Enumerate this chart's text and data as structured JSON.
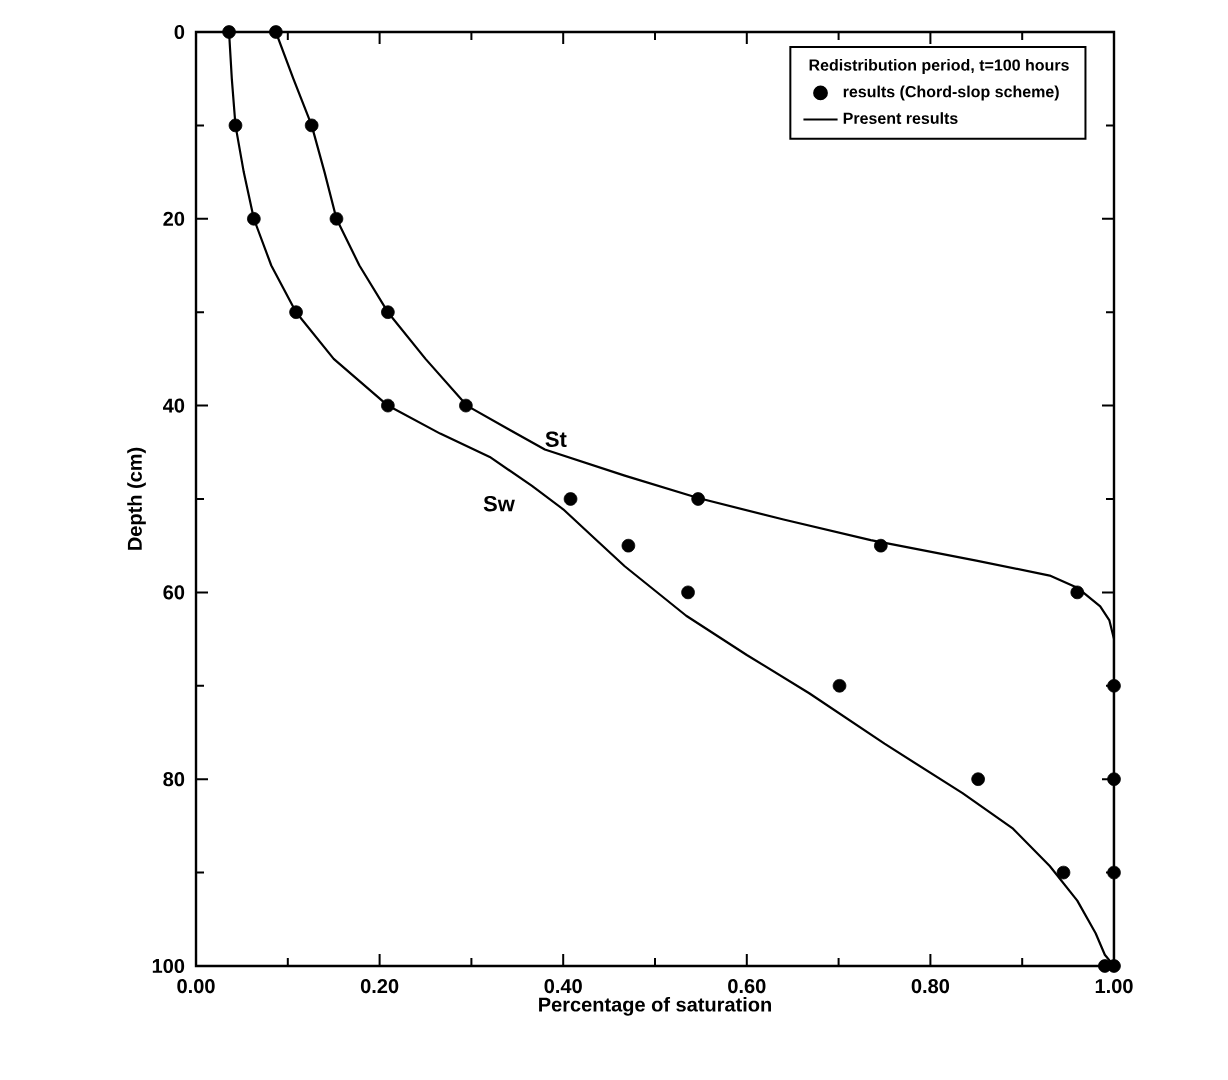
{
  "chart_data": {
    "type": "line",
    "xlabel": "Percentage of saturation",
    "ylabel": "Depth (cm)",
    "legend_title": "Redistribution period, t=100 hours",
    "xlim": [
      0,
      1
    ],
    "ylim": [
      100,
      0
    ],
    "xticks": [
      {
        "value": 0,
        "label": "0.00"
      },
      {
        "value": 0.2,
        "label": "0.20"
      },
      {
        "value": 0.4,
        "label": "0.40"
      },
      {
        "value": 0.6,
        "label": "0.60"
      },
      {
        "value": 0.8,
        "label": "0.80"
      },
      {
        "value": 1,
        "label": "1.00"
      }
    ],
    "yticks": [
      0,
      20,
      40,
      60,
      80,
      100
    ],
    "legend": "top right",
    "series": [
      {
        "name": "results (Chord-slop scheme)",
        "type": "scatter",
        "marker": "circle",
        "color": "#000000",
        "x": [
          0.036,
          0.043,
          0.063,
          0.109,
          0.209,
          0.408,
          0.471,
          0.536,
          0.701,
          0.852,
          0.945,
          0.99,
          0.087,
          0.126,
          0.153,
          0.209,
          0.294,
          0.547,
          0.746,
          0.96,
          1.0,
          1.0,
          1.0,
          1.0
        ],
        "values": [
          0,
          10,
          20,
          30,
          40,
          50,
          55,
          60,
          70,
          80,
          90,
          100,
          0,
          10,
          20,
          30,
          40,
          50,
          55,
          60,
          70,
          80,
          90,
          100
        ]
      },
      {
        "name": "Present results",
        "color": "#000000",
        "x": [
          0.036,
          0.039,
          0.043,
          0.052,
          0.063,
          0.082,
          0.109,
          0.15,
          0.209,
          0.266,
          0.32,
          0.366,
          0.4,
          0.434,
          0.467,
          0.534,
          0.6,
          0.668,
          0.75,
          0.835,
          0.89,
          0.93,
          0.96,
          0.98,
          0.99,
          1.0
        ],
        "values": [
          0,
          5,
          10,
          15,
          20,
          25,
          30,
          35,
          40,
          43,
          45.5,
          48.6,
          51.1,
          54.2,
          57.2,
          62.5,
          66.7,
          70.8,
          76.2,
          81.5,
          85.3,
          89.3,
          93,
          96.5,
          98.8,
          100
        ]
      },
      {
        "color": "#000000",
        "x": [
          0.087,
          0.106,
          0.126,
          0.14,
          0.153,
          0.178,
          0.209,
          0.25,
          0.295,
          0.34,
          0.38,
          0.467,
          0.547,
          0.64,
          0.735,
          0.85,
          0.93,
          0.96,
          0.985,
          0.995,
          1.0,
          1.0
        ],
        "values": [
          0,
          5,
          10,
          15,
          20,
          25,
          30,
          35,
          40,
          42.5,
          44.7,
          47.5,
          49.9,
          52.2,
          54.4,
          56.6,
          58.2,
          59.5,
          61.5,
          63,
          65,
          100
        ]
      }
    ],
    "annotations": [
      "St",
      "Sw"
    ]
  }
}
